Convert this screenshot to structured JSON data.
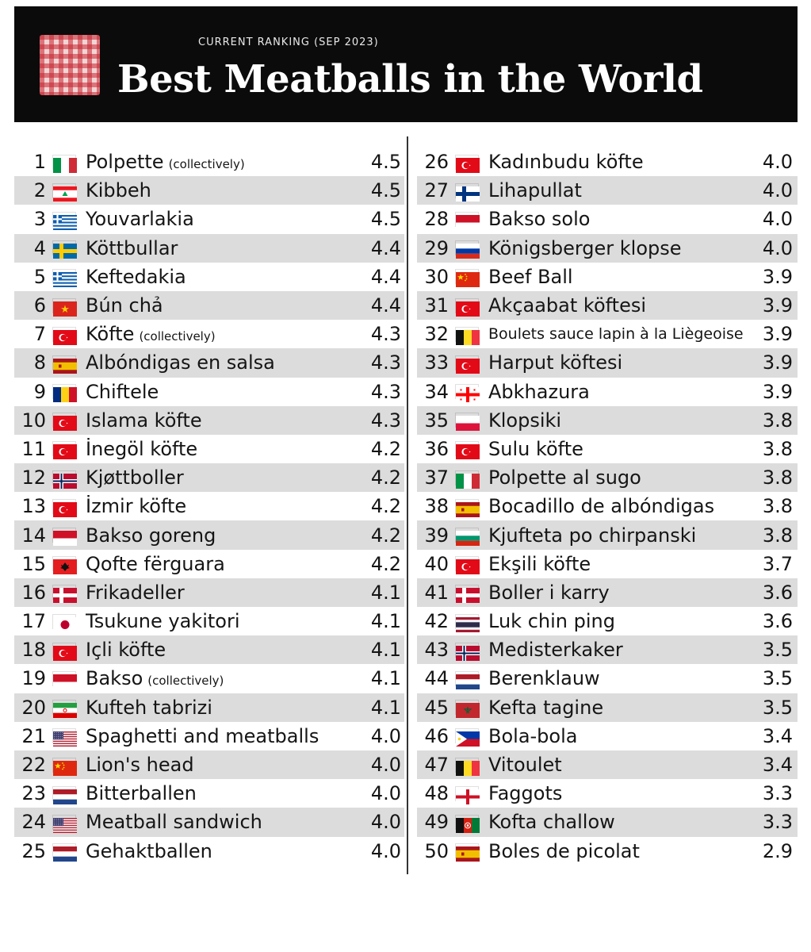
{
  "header": {
    "subtitle": "CURRENT RANKING (SEP 2023)",
    "title": "Best Meatballs in the World"
  },
  "rankings": [
    {
      "rank": "1",
      "flag": "italy-flag",
      "name": "Polpette",
      "note": "(collectively)",
      "rating": "4.5"
    },
    {
      "rank": "2",
      "flag": "lebanon-flag",
      "name": "Kibbeh",
      "rating": "4.5"
    },
    {
      "rank": "3",
      "flag": "greece-flag",
      "name": "Youvarlakia",
      "rating": "4.5"
    },
    {
      "rank": "4",
      "flag": "sweden-flag",
      "name": "Köttbullar",
      "rating": "4.4"
    },
    {
      "rank": "5",
      "flag": "greece-flag",
      "name": "Keftedakia",
      "rating": "4.4"
    },
    {
      "rank": "6",
      "flag": "vietnam-flag",
      "name": "Bún chả",
      "rating": "4.4"
    },
    {
      "rank": "7",
      "flag": "turkey-flag",
      "name": "Köfte",
      "note": "(collectively)",
      "rating": "4.3"
    },
    {
      "rank": "8",
      "flag": "spain-flag",
      "name": "Albóndigas en salsa",
      "rating": "4.3"
    },
    {
      "rank": "9",
      "flag": "romania-flag",
      "name": "Chiftele",
      "rating": "4.3"
    },
    {
      "rank": "10",
      "flag": "turkey-flag",
      "name": "Islama köfte",
      "rating": "4.3"
    },
    {
      "rank": "11",
      "flag": "turkey-flag",
      "name": "İnegöl köfte",
      "rating": "4.2"
    },
    {
      "rank": "12",
      "flag": "norway-flag",
      "name": "Kjøttboller",
      "rating": "4.2"
    },
    {
      "rank": "13",
      "flag": "turkey-flag",
      "name": "İzmir köfte",
      "rating": "4.2"
    },
    {
      "rank": "14",
      "flag": "indonesia-flag",
      "name": "Bakso goreng",
      "rating": "4.2"
    },
    {
      "rank": "15",
      "flag": "albania-flag",
      "name": "Qofte fërguara",
      "rating": "4.2"
    },
    {
      "rank": "16",
      "flag": "denmark-flag",
      "name": "Frikadeller",
      "rating": "4.1"
    },
    {
      "rank": "17",
      "flag": "japan-flag",
      "name": "Tsukune yakitori",
      "rating": "4.1"
    },
    {
      "rank": "18",
      "flag": "turkey-flag",
      "name": "Içli köfte",
      "rating": "4.1"
    },
    {
      "rank": "19",
      "flag": "indonesia-flag",
      "name": "Bakso",
      "note": "(collectively)",
      "rating": "4.1"
    },
    {
      "rank": "20",
      "flag": "iran-flag",
      "name": "Kufteh tabrizi",
      "rating": "4.1"
    },
    {
      "rank": "21",
      "flag": "usa-flag",
      "name": "Spaghetti and meatballs",
      "rating": "4.0"
    },
    {
      "rank": "22",
      "flag": "china-flag",
      "name": "Lion's head",
      "rating": "4.0"
    },
    {
      "rank": "23",
      "flag": "netherlands-flag",
      "name": "Bitterballen",
      "rating": "4.0"
    },
    {
      "rank": "24",
      "flag": "usa-flag",
      "name": "Meatball sandwich",
      "rating": "4.0"
    },
    {
      "rank": "25",
      "flag": "netherlands-flag",
      "name": "Gehaktballen",
      "rating": "4.0"
    },
    {
      "rank": "26",
      "flag": "turkey-flag",
      "name": "Kadınbudu köfte",
      "rating": "4.0"
    },
    {
      "rank": "27",
      "flag": "finland-flag",
      "name": "Lihapullat",
      "rating": "4.0"
    },
    {
      "rank": "28",
      "flag": "indonesia-flag",
      "name": "Bakso solo",
      "rating": "4.0"
    },
    {
      "rank": "29",
      "flag": "russia-flag",
      "name": "Königsberger klopse",
      "rating": "4.0"
    },
    {
      "rank": "30",
      "flag": "china-flag",
      "name": "Beef Ball",
      "rating": "3.9"
    },
    {
      "rank": "31",
      "flag": "turkey-flag",
      "name": "Akçaabat köftesi",
      "rating": "3.9"
    },
    {
      "rank": "32",
      "flag": "belgium-flag",
      "name": "Boulets sauce lapin à la Liègeoise",
      "small": true,
      "rating": "3.9"
    },
    {
      "rank": "33",
      "flag": "turkey-flag",
      "name": "Harput köftesi",
      "rating": "3.9"
    },
    {
      "rank": "34",
      "flag": "georgia-flag",
      "name": "Abkhazura",
      "rating": "3.9"
    },
    {
      "rank": "35",
      "flag": "poland-flag",
      "name": "Klopsiki",
      "rating": "3.8"
    },
    {
      "rank": "36",
      "flag": "turkey-flag",
      "name": "Sulu köfte",
      "rating": "3.8"
    },
    {
      "rank": "37",
      "flag": "italy-flag",
      "name": "Polpette al sugo",
      "rating": "3.8"
    },
    {
      "rank": "38",
      "flag": "spain-flag",
      "name": "Bocadillo de albóndigas",
      "rating": "3.8"
    },
    {
      "rank": "39",
      "flag": "bulgaria-flag",
      "name": "Kjufteta po chirpanski",
      "rating": "3.8"
    },
    {
      "rank": "40",
      "flag": "turkey-flag",
      "name": "Ekşili köfte",
      "rating": "3.7"
    },
    {
      "rank": "41",
      "flag": "denmark-flag",
      "name": "Boller i karry",
      "rating": "3.6"
    },
    {
      "rank": "42",
      "flag": "thailand-flag",
      "name": "Luk chin ping",
      "rating": "3.6"
    },
    {
      "rank": "43",
      "flag": "norway-flag",
      "name": "Medisterkaker",
      "rating": "3.5"
    },
    {
      "rank": "44",
      "flag": "netherlands-flag",
      "name": "Berenklauw",
      "rating": "3.5"
    },
    {
      "rank": "45",
      "flag": "morocco-flag",
      "name": "Kefta tagine",
      "rating": "3.5"
    },
    {
      "rank": "46",
      "flag": "philippines-flag",
      "name": "Bola-bola",
      "rating": "3.4"
    },
    {
      "rank": "47",
      "flag": "belgium-flag",
      "name": "Vitoulet",
      "rating": "3.4"
    },
    {
      "rank": "48",
      "flag": "england-flag",
      "name": "Faggots",
      "rating": "3.3"
    },
    {
      "rank": "49",
      "flag": "afghanistan-flag",
      "name": "Kofta challow",
      "rating": "3.3"
    },
    {
      "rank": "50",
      "flag": "spain-flag",
      "name": "Boles de picolat",
      "rating": "2.9"
    }
  ]
}
